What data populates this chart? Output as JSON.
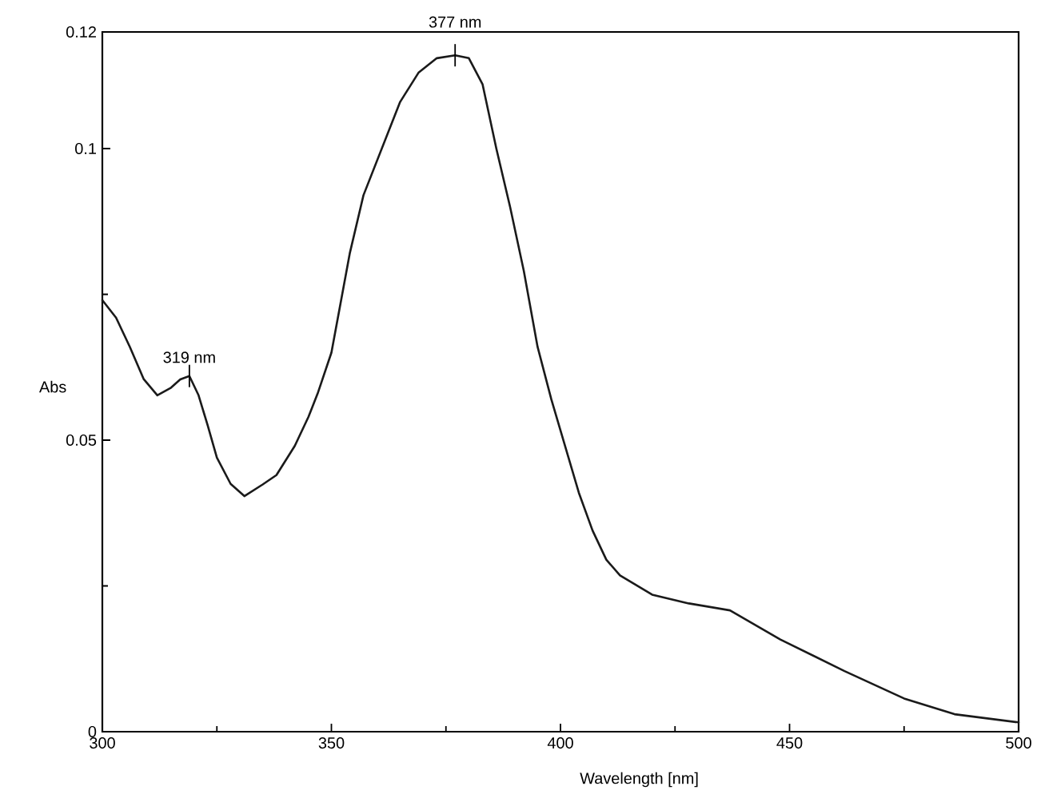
{
  "chart_data": {
    "type": "line",
    "xlabel": "Wavelength [nm]",
    "ylabel": "Abs",
    "x": [
      300,
      303,
      306,
      309,
      312,
      315,
      317,
      319,
      321,
      323,
      325,
      328,
      331,
      335,
      338,
      342,
      345,
      347,
      350,
      354,
      357,
      361,
      365,
      369,
      373,
      377,
      380,
      383,
      386,
      389,
      392,
      395,
      398,
      401,
      404,
      407,
      410,
      413,
      420,
      428,
      437,
      448,
      462,
      475,
      486,
      500
    ],
    "values": [
      0.074,
      0.071,
      0.066,
      0.0605,
      0.0577,
      0.059,
      0.0604,
      0.061,
      0.0577,
      0.0525,
      0.047,
      0.0425,
      0.0404,
      0.0424,
      0.044,
      0.049,
      0.054,
      0.058,
      0.065,
      0.082,
      0.092,
      0.1,
      0.108,
      0.113,
      0.1155,
      0.116,
      0.1155,
      0.111,
      0.1,
      0.09,
      0.079,
      0.066,
      0.057,
      0.049,
      0.041,
      0.0345,
      0.0295,
      0.0268,
      0.0235,
      0.022,
      0.0208,
      0.0158,
      0.0104,
      0.0057,
      0.003,
      0.0016
    ],
    "color": "#1a1a1a",
    "xlim": [
      300,
      500
    ],
    "ylim": [
      0,
      0.12
    ],
    "xticks": [
      300,
      {
        "value": 325,
        "label": null
      },
      350,
      {
        "value": 375,
        "label": null
      },
      400,
      {
        "value": 425,
        "label": null
      },
      450,
      {
        "value": 475,
        "label": null
      },
      500
    ],
    "yticks": [
      0,
      {
        "value": 0.025,
        "label": null
      },
      0.05,
      {
        "value": 0.075,
        "label": null
      },
      0.1,
      0.12
    ],
    "annotations": [
      {
        "text": "319 nm",
        "x": 319,
        "y": 0.061
      },
      {
        "text": "377 nm",
        "x": 377,
        "y": 0.116
      }
    ]
  }
}
